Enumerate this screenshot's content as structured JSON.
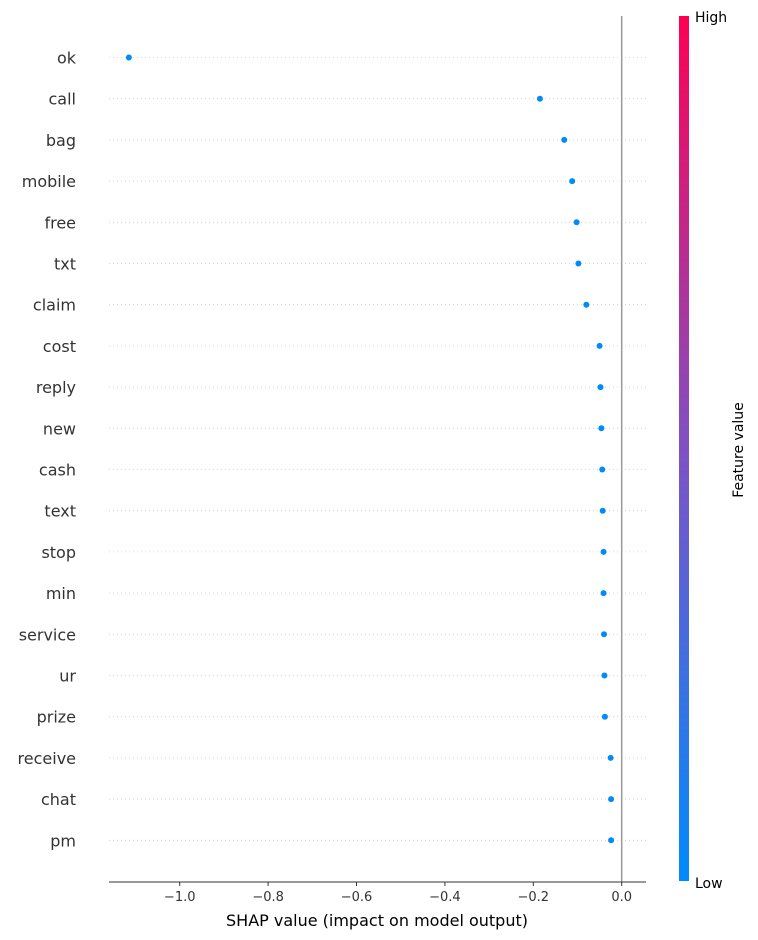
{
  "chart_data": {
    "type": "scatter",
    "features": [
      "ok",
      "call",
      "bag",
      "mobile",
      "free",
      "txt",
      "claim",
      "cost",
      "reply",
      "new",
      "cash",
      "text",
      "stop",
      "min",
      "service",
      "ur",
      "prize",
      "receive",
      "chat",
      "pm"
    ],
    "shap_values": [
      -1.115,
      -0.185,
      -0.13,
      -0.112,
      -0.102,
      -0.098,
      -0.08,
      -0.05,
      -0.048,
      -0.046,
      -0.044,
      -0.043,
      -0.041,
      -0.041,
      -0.04,
      -0.039,
      -0.038,
      -0.025,
      -0.024,
      -0.024
    ],
    "point_color": "#008bfb",
    "xlabel": "SHAP value (impact on model output)",
    "xlim": [
      -1.16,
      0.055
    ],
    "xticks": [
      -1.0,
      -0.8,
      -0.6,
      -0.4,
      -0.2,
      0.0
    ],
    "xtick_labels": [
      "−1.0",
      "−0.8",
      "−0.6",
      "−0.4",
      "−0.2",
      "0.0"
    ],
    "colorbar": {
      "label": "Feature value",
      "high_label": "High",
      "low_label": "Low",
      "high_color": "#ff0052",
      "low_color": "#008bfb"
    },
    "zero_line": true,
    "row_gridlines": "dotted"
  }
}
